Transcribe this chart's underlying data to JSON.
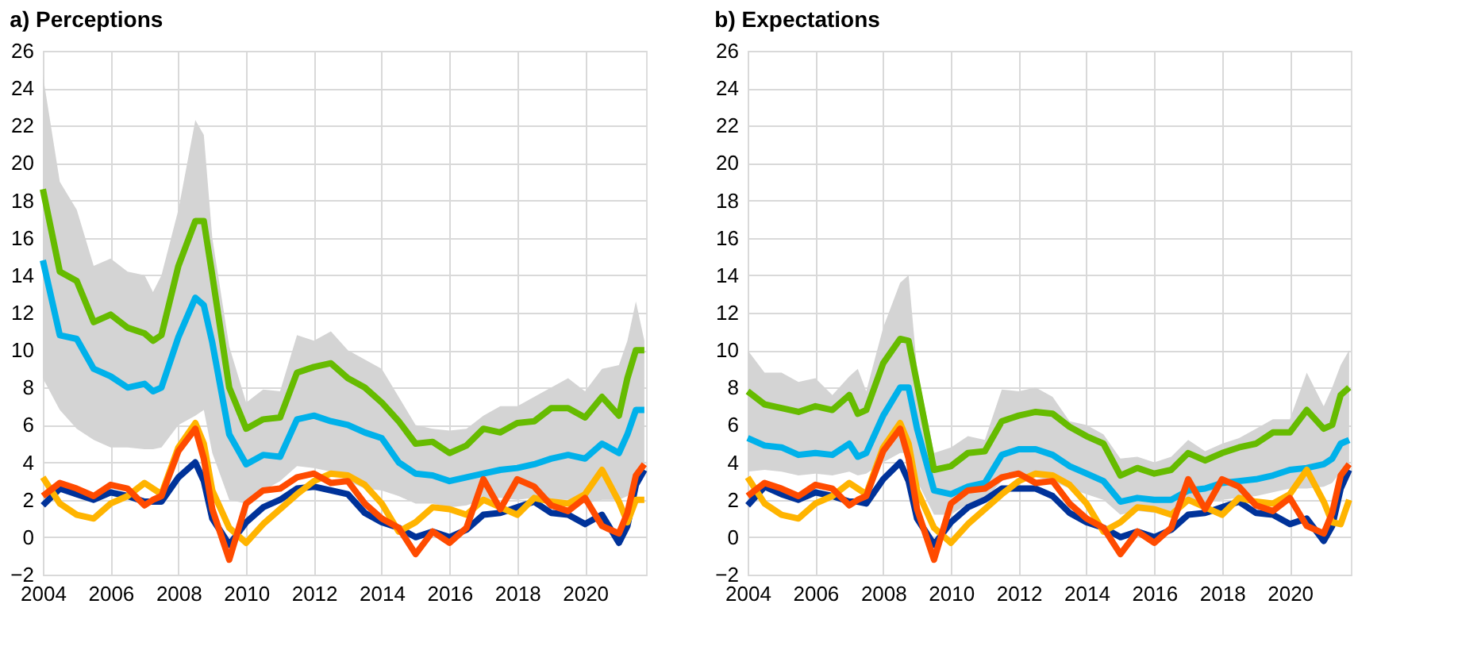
{
  "chart_data": [
    {
      "type": "line",
      "title": "a) Perceptions",
      "xlim": [
        2004,
        2021.8
      ],
      "xticks": [
        2004,
        2006,
        2008,
        2010,
        2012,
        2014,
        2016,
        2018,
        2020
      ],
      "ylim": [
        -2,
        26
      ],
      "yticks": [
        -2,
        0,
        2,
        4,
        6,
        8,
        10,
        12,
        14,
        16,
        18,
        20,
        22,
        24,
        26
      ],
      "grid": true,
      "line_style": "solid",
      "marker": "none",
      "x": [
        2004,
        2004.5,
        2005,
        2005.5,
        2006,
        2006.5,
        2007,
        2007.25,
        2007.5,
        2008,
        2008.5,
        2008.75,
        2009,
        2009.5,
        2010,
        2010.5,
        2011,
        2011.5,
        2012,
        2012.5,
        2013,
        2013.5,
        2014,
        2014.5,
        2015,
        2015.5,
        2016,
        2016.5,
        2017,
        2017.5,
        2018,
        2018.5,
        2019,
        2019.5,
        2020,
        2020.5,
        2021,
        2021.25,
        2021.5,
        2021.75
      ],
      "series": [
        {
          "color": "#00b1ea",
          "values": [
            14.8,
            10.8,
            10.6,
            9.0,
            8.6,
            8.0,
            8.2,
            7.8,
            8.0,
            10.7,
            12.8,
            12.4,
            10.4,
            5.5,
            3.9,
            4.4,
            4.3,
            6.3,
            6.5,
            6.2,
            6.0,
            5.6,
            5.3,
            4.0,
            3.4,
            3.3,
            3.0,
            3.2,
            3.4,
            3.6,
            3.7,
            3.9,
            4.2,
            4.4,
            4.2,
            5.0,
            4.5,
            5.5,
            6.8,
            6.8
          ],
          "lower": [
            8.5,
            6.8,
            5.8,
            5.2,
            4.8,
            4.8,
            4.7,
            4.7,
            4.8,
            6.0,
            6.5,
            6.8,
            4.5,
            2.0,
            1.8,
            2.5,
            3.0,
            3.8,
            3.7,
            3.5,
            3.0,
            2.6,
            2.5,
            2.2,
            1.8,
            1.8,
            1.6,
            1.7,
            2.0,
            2.1,
            2.0,
            2.1,
            2.0,
            2.0,
            1.8,
            2.0,
            2.0,
            2.2,
            3.0,
            3.5
          ],
          "upper": [
            24.7,
            19,
            17.5,
            14.5,
            14.9,
            14.2,
            14.0,
            13.1,
            14,
            17.5,
            22.3,
            21.5,
            16,
            10.2,
            7.2,
            7.9,
            7.8,
            10.8,
            10.5,
            11.0,
            10.0,
            9.5,
            9.0,
            7.5,
            6.0,
            5.8,
            5.7,
            5.8,
            6.5,
            7.0,
            7.0,
            7.5,
            8.0,
            8.5,
            7.8,
            9.0,
            9.2,
            10.5,
            12.6,
            10.5
          ]
        },
        {
          "color": "#66bb00",
          "values": [
            18.6,
            14.2,
            13.7,
            11.5,
            11.9,
            11.2,
            10.9,
            10.5,
            10.8,
            14.5,
            16.9,
            16.9,
            14,
            8,
            5.8,
            6.3,
            6.4,
            8.8,
            9.1,
            9.3,
            8.5,
            8.0,
            7.2,
            6.2,
            5.0,
            5.1,
            4.5,
            4.9,
            5.8,
            5.6,
            6.1,
            6.2,
            6.9,
            6.9,
            6.4,
            7.5,
            6.5,
            8.5,
            10.0,
            10.0
          ]
        },
        {
          "color": "#003299",
          "values": [
            1.7,
            2.6,
            2.3,
            2.0,
            2.4,
            2.2,
            1.9,
            1.9,
            1.9,
            3.2,
            4.0,
            3.0,
            1.0,
            -0.4,
            0.8,
            1.6,
            2.0,
            2.6,
            2.7,
            2.5,
            2.3,
            1.3,
            0.8,
            0.5,
            0.0,
            0.3,
            0.0,
            0.4,
            1.2,
            1.3,
            1.6,
            1.9,
            1.3,
            1.2,
            0.7,
            1.2,
            -0.3,
            0.6,
            2.8,
            3.6
          ]
        },
        {
          "color": "#ffb400",
          "values": [
            3.2,
            1.8,
            1.2,
            1.0,
            1.8,
            2.2,
            2.9,
            2.6,
            2.3,
            4.8,
            6.1,
            5.0,
            2.5,
            0.5,
            -0.3,
            0.7,
            1.5,
            2.3,
            3.0,
            3.4,
            3.3,
            2.8,
            1.8,
            0.3,
            0.8,
            1.6,
            1.5,
            1.2,
            2.0,
            1.6,
            1.2,
            2.1,
            1.9,
            1.8,
            2.3,
            3.6,
            1.9,
            0.8,
            2.0,
            2.0
          ]
        },
        {
          "color": "#ff4b00",
          "values": [
            2.2,
            2.9,
            2.6,
            2.2,
            2.8,
            2.6,
            1.7,
            2.0,
            2.2,
            4.6,
            5.8,
            4.2,
            1.5,
            -1.2,
            1.8,
            2.5,
            2.6,
            3.2,
            3.4,
            2.9,
            3.0,
            1.8,
            1.0,
            0.5,
            -0.9,
            0.3,
            -0.3,
            0.5,
            3.1,
            1.5,
            3.1,
            2.7,
            1.7,
            1.4,
            2.1,
            0.6,
            0.2,
            1.3,
            3.3,
            3.9
          ]
        }
      ]
    },
    {
      "type": "line",
      "title": "b) Expectations",
      "xlim": [
        2004,
        2021.8
      ],
      "xticks": [
        2004,
        2006,
        2008,
        2010,
        2012,
        2014,
        2016,
        2018,
        2020
      ],
      "ylim": [
        -2,
        26
      ],
      "yticks": [
        -2,
        0,
        2,
        4,
        6,
        8,
        10,
        12,
        14,
        16,
        18,
        20,
        22,
        24,
        26
      ],
      "grid": true,
      "line_style": "solid",
      "marker": "none",
      "x": [
        2004,
        2004.5,
        2005,
        2005.5,
        2006,
        2006.5,
        2007,
        2007.25,
        2007.5,
        2008,
        2008.5,
        2008.75,
        2009,
        2009.5,
        2010,
        2010.5,
        2011,
        2011.5,
        2012,
        2012.5,
        2013,
        2013.5,
        2014,
        2014.5,
        2015,
        2015.5,
        2016,
        2016.5,
        2017,
        2017.5,
        2018,
        2018.5,
        2019,
        2019.5,
        2020,
        2020.5,
        2021,
        2021.25,
        2021.5,
        2021.75
      ],
      "series": [
        {
          "color": "#00b1ea",
          "values": [
            5.3,
            4.9,
            4.8,
            4.4,
            4.5,
            4.4,
            5.0,
            4.3,
            4.5,
            6.5,
            8.0,
            8.0,
            5.8,
            2.5,
            2.3,
            2.7,
            2.9,
            4.4,
            4.7,
            4.7,
            4.4,
            3.8,
            3.4,
            3.0,
            1.9,
            2.1,
            2.0,
            2.0,
            2.5,
            2.6,
            2.9,
            3.0,
            3.1,
            3.3,
            3.6,
            3.7,
            3.9,
            4.2,
            5.0,
            5.2
          ],
          "lower": [
            3.5,
            3.6,
            3.5,
            3.3,
            3.4,
            3.3,
            3.5,
            3.3,
            3.4,
            4.0,
            4.5,
            4.5,
            3.0,
            1.2,
            1.2,
            1.8,
            2.0,
            3.0,
            3.3,
            3.2,
            3.0,
            2.6,
            2.3,
            2.0,
            1.2,
            1.4,
            1.3,
            1.4,
            1.8,
            1.8,
            2.0,
            2.1,
            2.2,
            2.4,
            2.6,
            2.6,
            2.7,
            2.9,
            3.5,
            3.8
          ],
          "upper": [
            10.0,
            8.8,
            8.8,
            8.3,
            8.5,
            7.6,
            8.6,
            9.0,
            7.8,
            11.2,
            13.6,
            14.0,
            9.0,
            4.5,
            4.8,
            5.4,
            5.2,
            7.9,
            7.8,
            8.0,
            7.5,
            6.2,
            6.0,
            5.5,
            4.2,
            4.3,
            4.0,
            4.3,
            5.2,
            4.6,
            5.0,
            5.3,
            5.8,
            6.3,
            6.3,
            8.8,
            7.0,
            8.0,
            9.2,
            10.0
          ]
        },
        {
          "color": "#66bb00",
          "values": [
            7.8,
            7.1,
            6.9,
            6.7,
            7.0,
            6.8,
            7.6,
            6.6,
            6.8,
            9.3,
            10.6,
            10.5,
            8.2,
            3.6,
            3.8,
            4.5,
            4.6,
            6.2,
            6.5,
            6.7,
            6.6,
            5.9,
            5.4,
            5.0,
            3.3,
            3.7,
            3.4,
            3.6,
            4.5,
            4.1,
            4.5,
            4.8,
            5.0,
            5.6,
            5.6,
            6.8,
            5.8,
            6.0,
            7.6,
            8.0
          ]
        },
        {
          "color": "#003299",
          "values": [
            1.7,
            2.7,
            2.3,
            2.0,
            2.4,
            2.2,
            1.9,
            1.9,
            1.8,
            3.1,
            4.0,
            3.0,
            1.0,
            -0.4,
            0.8,
            1.6,
            2.0,
            2.6,
            2.6,
            2.6,
            2.2,
            1.3,
            0.8,
            0.5,
            0.0,
            0.3,
            0.0,
            0.4,
            1.2,
            1.3,
            1.6,
            1.9,
            1.3,
            1.2,
            0.7,
            1.0,
            -0.2,
            0.6,
            2.6,
            3.6
          ]
        },
        {
          "color": "#ffb400",
          "values": [
            3.2,
            1.8,
            1.2,
            1.0,
            1.8,
            2.2,
            2.9,
            2.6,
            2.3,
            4.8,
            6.1,
            5.0,
            2.5,
            0.5,
            -0.3,
            0.7,
            1.5,
            2.3,
            3.0,
            3.4,
            3.3,
            2.8,
            1.8,
            0.3,
            0.8,
            1.6,
            1.5,
            1.2,
            2.0,
            1.6,
            1.2,
            2.1,
            1.9,
            1.8,
            2.3,
            3.6,
            1.9,
            0.8,
            0.7,
            2.0
          ]
        },
        {
          "color": "#ff4b00",
          "values": [
            2.2,
            2.9,
            2.6,
            2.2,
            2.8,
            2.6,
            1.7,
            2.0,
            2.2,
            4.6,
            5.8,
            4.2,
            1.5,
            -1.2,
            1.8,
            2.5,
            2.6,
            3.2,
            3.4,
            2.9,
            3.0,
            1.8,
            1.0,
            0.5,
            -0.9,
            0.3,
            -0.3,
            0.5,
            3.1,
            1.5,
            3.1,
            2.7,
            1.7,
            1.4,
            2.1,
            0.6,
            0.2,
            1.3,
            3.3,
            3.9
          ]
        }
      ]
    }
  ]
}
